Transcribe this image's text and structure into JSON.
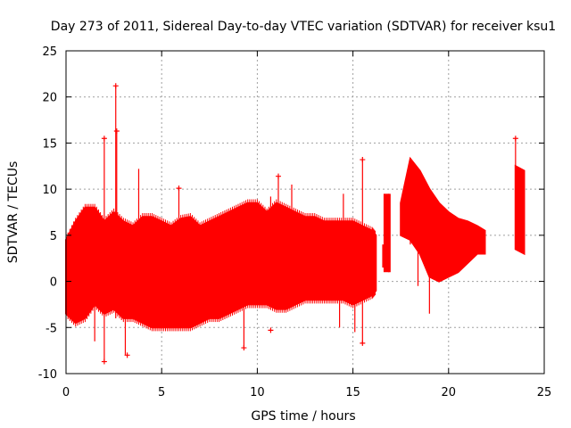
{
  "chart_data": {
    "type": "scatter",
    "title": "Day 273 of 2011, Sidereal Day-to-day VTEC variation (SDTVAR) for receiver ksu1",
    "xlabel": "GPS time / hours",
    "ylabel": "SDTVAR / TECUs",
    "xlim": [
      0,
      25
    ],
    "ylim": [
      -10,
      25
    ],
    "xticks": [
      0,
      5,
      10,
      15,
      20,
      25
    ],
    "yticks": [
      -10,
      -5,
      0,
      5,
      10,
      15,
      20,
      25
    ],
    "grid": true,
    "marker": "+",
    "color": "#ff0000",
    "envelope": {
      "x": [
        0.0,
        0.5,
        1.0,
        1.5,
        2.0,
        2.5,
        3.0,
        3.5,
        4.0,
        4.5,
        5.0,
        5.5,
        6.0,
        6.5,
        7.0,
        7.5,
        8.0,
        8.5,
        9.0,
        9.5,
        10.0,
        10.5,
        11.0,
        11.5,
        12.0,
        12.5,
        13.0,
        13.5,
        14.0,
        14.5,
        15.0,
        15.5,
        16.0,
        16.2
      ],
      "upper": [
        4.5,
        6.5,
        8.0,
        8.0,
        6.5,
        7.5,
        6.5,
        6.0,
        7.0,
        7.0,
        6.5,
        6.0,
        6.8,
        7.0,
        6.0,
        6.5,
        7.0,
        7.5,
        8.0,
        8.5,
        8.5,
        7.5,
        8.5,
        8.0,
        7.5,
        7.0,
        7.0,
        6.5,
        6.5,
        6.5,
        6.5,
        6.0,
        5.5,
        5.0
      ],
      "lower": [
        -3.5,
        -4.5,
        -4.0,
        -2.5,
        -3.5,
        -3.0,
        -4.0,
        -4.0,
        -4.5,
        -5.0,
        -5.0,
        -5.0,
        -5.0,
        -5.0,
        -4.5,
        -4.0,
        -4.0,
        -3.5,
        -3.0,
        -2.5,
        -2.5,
        -2.5,
        -3.0,
        -3.0,
        -2.5,
        -2.0,
        -2.0,
        -2.0,
        -2.0,
        -2.0,
        -2.5,
        -2.0,
        -1.5,
        -1.0
      ]
    },
    "segments": [
      {
        "x": [
          16.6,
          16.6,
          16.9,
          16.9
        ],
        "y": [
          4.0,
          1.5,
          1.0,
          9.5
        ]
      },
      {
        "x": [
          17.5,
          18.0,
          18.5,
          19.0,
          19.5,
          20.0,
          20.5,
          21.0,
          21.5,
          21.9
        ],
        "upper": [
          8.5,
          13.3,
          12.0,
          10.0,
          8.5,
          7.5,
          6.8,
          6.5,
          6.0,
          5.5
        ],
        "lower": [
          5.0,
          4.5,
          3.0,
          0.5,
          0.0,
          0.5,
          1.0,
          2.0,
          3.0,
          3.0
        ]
      },
      {
        "x": [
          23.5,
          23.95
        ],
        "upper": [
          12.5,
          12.0
        ],
        "lower": [
          3.5,
          3.0
        ]
      }
    ],
    "spikes": [
      {
        "x": 0.1,
        "y_low": -3.5,
        "y_high": 5.0
      },
      {
        "x": 1.5,
        "y_low": -6.5,
        "y_high": 1.0
      },
      {
        "x": 2.0,
        "y_low": -8.7,
        "y_high": 15.5
      },
      {
        "x": 2.6,
        "y_low": -4.0,
        "y_high": 21.2
      },
      {
        "x": 2.65,
        "y_low": 0.0,
        "y_high": 16.3
      },
      {
        "x": 3.1,
        "y_low": -8.0,
        "y_high": 5.0
      },
      {
        "x": 3.8,
        "y_low": -4.5,
        "y_high": 12.2
      },
      {
        "x": 5.9,
        "y_low": 0.0,
        "y_high": 10.1
      },
      {
        "x": 9.3,
        "y_low": -7.2,
        "y_high": 6.0
      },
      {
        "x": 10.7,
        "y_low": -3.0,
        "y_high": 9.2
      },
      {
        "x": 11.1,
        "y_low": -2.0,
        "y_high": 11.4
      },
      {
        "x": 11.8,
        "y_low": -2.0,
        "y_high": 10.5
      },
      {
        "x": 14.3,
        "y_low": -5.0,
        "y_high": 3.0
      },
      {
        "x": 14.5,
        "y_low": 0.0,
        "y_high": 9.5
      },
      {
        "x": 15.1,
        "y_low": -5.5,
        "y_high": 4.0
      },
      {
        "x": 15.5,
        "y_low": -6.7,
        "y_high": 13.2
      },
      {
        "x": 18.0,
        "y_low": 4.0,
        "y_high": 13.2
      },
      {
        "x": 18.4,
        "y_low": -0.5,
        "y_high": 8.0
      },
      {
        "x": 19.0,
        "y_low": -3.5,
        "y_high": 2.0
      },
      {
        "x": 23.5,
        "y_low": 4.0,
        "y_high": 15.5
      }
    ],
    "points": [
      {
        "x": 2.6,
        "y": 21.2
      },
      {
        "x": 2.0,
        "y": 15.5
      },
      {
        "x": 2.65,
        "y": 16.3
      },
      {
        "x": 2.0,
        "y": -8.7
      },
      {
        "x": 3.2,
        "y": -8.0
      },
      {
        "x": 5.9,
        "y": 10.1
      },
      {
        "x": 9.3,
        "y": -7.2
      },
      {
        "x": 10.7,
        "y": -5.3
      },
      {
        "x": 11.1,
        "y": 11.4
      },
      {
        "x": 15.5,
        "y": -6.7
      },
      {
        "x": 15.5,
        "y": 13.2
      },
      {
        "x": 23.5,
        "y": 15.5
      }
    ]
  }
}
